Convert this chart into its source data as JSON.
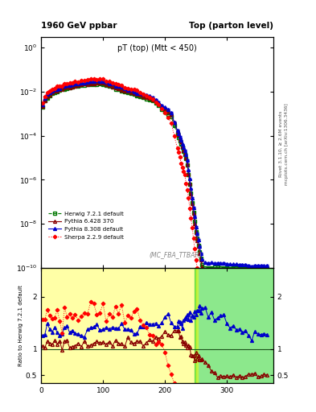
{
  "title_left": "1960 GeV ppbar",
  "title_right": "Top (parton level)",
  "main_title": "pT (top) (Mtt < 450)",
  "watermark": "(MC_FBA_TTBAR)",
  "right_label1": "Rivet 3.1.10, ≥ 2.6M events",
  "right_label2": "mcplots.cern.ch [arXiv:1306.3436]",
  "ylabel_ratio": "Ratio to Herwig 7.2.1 default",
  "ylim_main": [
    1e-10,
    3.0
  ],
  "ylim_ratio": [
    0.35,
    2.55
  ],
  "xlim": [
    0,
    375
  ],
  "colors": {
    "herwig": "#007700",
    "pythia6": "#880000",
    "pythia8": "#0000CC",
    "sherpa": "#FF0000"
  },
  "band_yellow_alpha": 0.35,
  "band_green_alpha": 0.45,
  "band_green_x": 248,
  "band_yellow_x_end": 250
}
